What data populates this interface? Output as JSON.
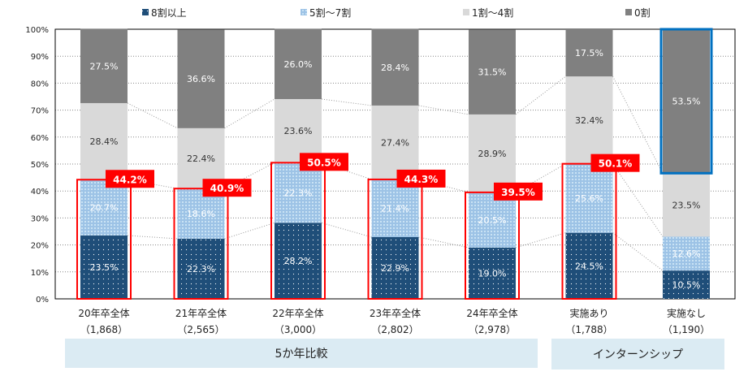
{
  "chart_data": {
    "type": "bar",
    "stacked": true,
    "categories": [
      "20年卒全体",
      "21年卒全体",
      "22年卒全体",
      "23年卒全体",
      "24年卒全体",
      "実施あり",
      "実施なし"
    ],
    "sample_sizes": [
      "（1,868）",
      "（2,565）",
      "（3,000）",
      "（2,802）",
      "（2,978）",
      "（1,788）",
      "（1,190）"
    ],
    "series": [
      {
        "name": "8割以上",
        "color": "#1f4e79",
        "values": [
          23.5,
          22.3,
          28.2,
          22.9,
          19.0,
          24.5,
          10.5
        ]
      },
      {
        "name": "5割～7割",
        "color": "#9dc3e6",
        "values": [
          20.7,
          18.6,
          22.3,
          21.4,
          20.5,
          25.6,
          12.6
        ]
      },
      {
        "name": "1割～4割",
        "color": "#d9d9d9",
        "values": [
          28.4,
          22.4,
          23.6,
          27.4,
          28.9,
          32.4,
          23.5
        ]
      },
      {
        "name": "0割",
        "color": "#808080",
        "values": [
          27.5,
          36.6,
          26.0,
          28.4,
          31.5,
          17.5,
          53.5
        ]
      }
    ],
    "highlight_totals": [
      "44.2%",
      "40.9%",
      "50.5%",
      "44.3%",
      "39.5%",
      "50.1%"
    ],
    "highlight_color": "#ff0000",
    "outline_last_color": "#0070c0",
    "ylim": [
      0,
      100
    ],
    "yticks": [
      "0%",
      "10%",
      "20%",
      "30%",
      "40%",
      "50%",
      "60%",
      "70%",
      "80%",
      "90%",
      "100%"
    ],
    "grid": true,
    "legend": "top",
    "groups": [
      {
        "label": "5か年比較"
      },
      {
        "label": "インターンシップ"
      }
    ]
  }
}
